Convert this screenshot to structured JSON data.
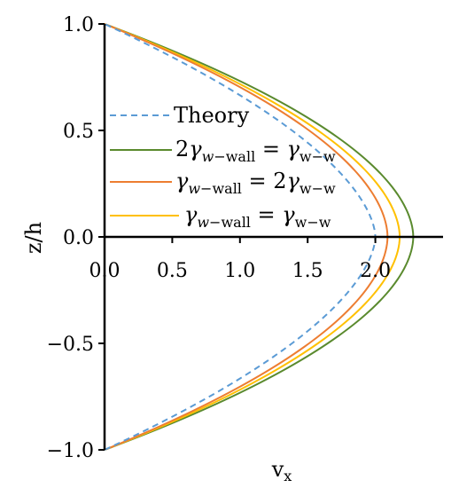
{
  "chart_data": {
    "type": "line",
    "xlabel": "v",
    "xlabel_sub": "x",
    "ylabel": "z/h",
    "xlim": [
      0,
      2.5
    ],
    "ylim": [
      -1,
      1
    ],
    "xticks": [
      {
        "v": 0,
        "label": "0.0"
      },
      {
        "v": 0.5,
        "label": "0.5"
      },
      {
        "v": 1.0,
        "label": "1.0"
      },
      {
        "v": 1.5,
        "label": "1.5"
      },
      {
        "v": 2.0,
        "label": "2.0"
      }
    ],
    "yticks": [
      {
        "v": 1.0,
        "label": "1.0"
      },
      {
        "v": 0.5,
        "label": "0.5"
      },
      {
        "v": 0.0,
        "label": "0.0"
      },
      {
        "v": -0.5,
        "label": "−0.5"
      },
      {
        "v": -1.0,
        "label": "−1.0"
      }
    ],
    "legend_position": "center-left",
    "series": [
      {
        "name": "Theory",
        "color": "#5b9bd5",
        "style": "dashed",
        "peak": 2.0
      },
      {
        "name": "2γ_w-wall = γ_w-w",
        "color": "#5a8a2e",
        "style": "solid",
        "peak": 2.28
      },
      {
        "name": "γ_w-wall = 2γ_w-w",
        "color": "#ed7d31",
        "style": "solid",
        "peak": 2.09
      },
      {
        "name": "γ_w-wall = γ_w-w",
        "color": "#ffc000",
        "style": "solid",
        "peak": 2.18
      }
    ]
  }
}
